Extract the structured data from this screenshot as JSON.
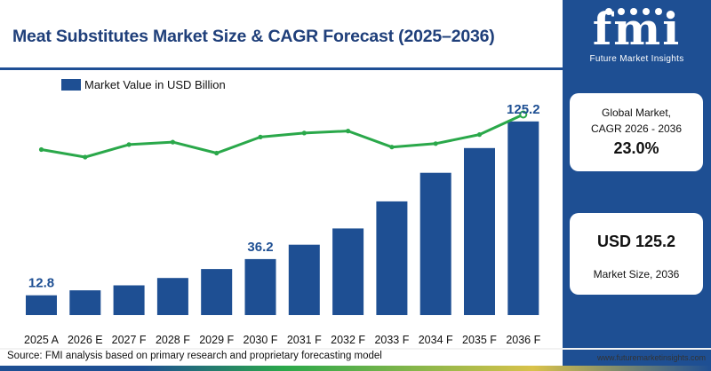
{
  "title": "Meat Substitutes Market Size & CAGR Forecast (2025–2036)",
  "logo": {
    "mark": "fmi",
    "name": "Future Market Insights"
  },
  "cagr_card": {
    "label_line1": "Global Market,",
    "label_line2": "CAGR 2026 - 2036",
    "value": "23.0%"
  },
  "size_card": {
    "value": "USD 125.2",
    "label": "Market Size, 2036"
  },
  "source": "Source: FMI analysis based on primary research and proprietary forecasting model",
  "website": "www.futuremarketinsights.com",
  "colors": {
    "bar": "#1e4f93",
    "line": "#2aa84a",
    "title": "#1f3f7a",
    "panel": "#1e4f93"
  },
  "chart_data": {
    "type": "bar",
    "categories": [
      "2025 A",
      "2026 E",
      "2027 F",
      "2028 F",
      "2029 F",
      "2030 F",
      "2031 F",
      "2032 F",
      "2033 F",
      "2034 F",
      "2035 F",
      "2036 F"
    ],
    "series": [
      {
        "name": "Market Value in USD Billion",
        "values": [
          12.8,
          16.0,
          19.2,
          24.0,
          29.8,
          36.2,
          45.5,
          56.0,
          73.5,
          92.0,
          108.0,
          125.2
        ]
      }
    ],
    "growth_line": {
      "type": "line",
      "values": [
        22.0,
        20.5,
        23.0,
        23.5,
        21.3,
        24.5,
        25.3,
        25.7,
        22.5,
        23.2,
        25.0,
        29.0
      ]
    },
    "data_labels": [
      {
        "index": 0,
        "text": "12.8"
      },
      {
        "index": 5,
        "text": "36.2"
      },
      {
        "index": 11,
        "text": "125.2"
      }
    ],
    "ylim": [
      0,
      132
    ],
    "legend": "top-left",
    "grid": false
  }
}
